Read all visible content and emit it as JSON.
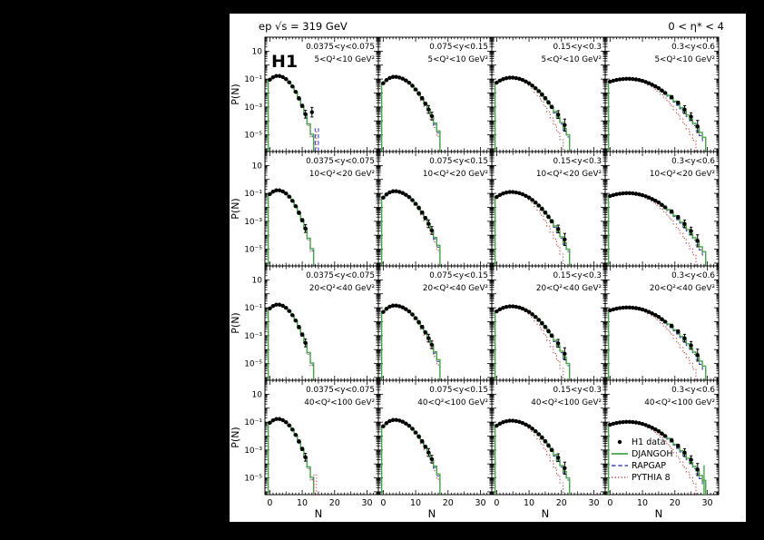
{
  "header": {
    "left": "ep √s = 319 GeV",
    "right": "0 < η* < 4"
  },
  "experiment_label": "H1",
  "colors": {
    "data": "#000000",
    "djangoh": "#4aa44a",
    "rapgap": "#4646be",
    "pythia": "#c05050",
    "background": "#ffffff",
    "page": "#000000"
  },
  "legend": [
    {
      "label": "H1 data",
      "style": "marker",
      "series": "data"
    },
    {
      "label": "DJANGOH",
      "style": "solid",
      "series": "djangoh"
    },
    {
      "label": "RAPGAP",
      "style": "dashed",
      "series": "rapgap"
    },
    {
      "label": "PYTHIA 8",
      "style": "dotted",
      "series": "pythia"
    }
  ],
  "chart_data": {
    "type": "line",
    "layout": "4x4 grid of log-scale multiplicity distributions P(N) vs N",
    "x_label": "N",
    "y_label": "P(N)",
    "x_range": [
      -1.5,
      33.5
    ],
    "y_log_range": [
      -6.2,
      2.0
    ],
    "x_ticks": [
      0,
      10,
      20,
      30
    ],
    "y_ticks": [
      {
        "label": "10",
        "log": 1
      },
      {
        "label": "10⁻¹",
        "log": -1
      },
      {
        "label": "10⁻³",
        "log": -3
      },
      {
        "label": "10⁻⁵",
        "log": -5
      }
    ],
    "y_bins": [
      "0.0375<y<0.075",
      "0.075<y<0.15",
      "0.15<y<0.3",
      "0.3<y<0.6"
    ],
    "q2_bins": [
      "5<Q²<10 GeV²",
      "10<Q²<20 GeV²",
      "20<Q²<40 GeV²",
      "40<Q²<100 GeV²"
    ],
    "series_names": [
      "H1 data",
      "DJANGOH",
      "RAPGAP",
      "PYTHIA 8"
    ],
    "legend_panel": "r3c3",
    "h1_label_panel": "r0c0",
    "columns": [
      {
        "data": [
          [
            0,
            0.089
          ],
          [
            1,
            0.134
          ],
          [
            2,
            0.166
          ],
          [
            3,
            0.165
          ],
          [
            4,
            0.139
          ],
          [
            5,
            0.098
          ],
          [
            6,
            0.058
          ],
          [
            7,
            0.029
          ],
          [
            8,
            0.012
          ],
          [
            9,
            0.0041
          ],
          [
            10,
            0.0012
          ],
          [
            11,
            0.0003
          ]
        ],
        "djangoh": [
          0.089,
          0.134,
          0.166,
          0.165,
          0.139,
          0.098,
          0.058,
          0.029,
          0.012,
          0.0041,
          0.0012,
          0.0003,
          6.1e-05,
          1.1e-05
        ],
        "rapgap": [
          0.086,
          0.13,
          0.162,
          0.162,
          0.136,
          0.095,
          0.055,
          0.027,
          0.011,
          0.0036,
          0.001,
          0.00025,
          5e-05,
          8e-06
        ],
        "pythia": [
          0.095,
          0.14,
          0.168,
          0.163,
          0.134,
          0.091,
          0.051,
          0.025,
          0.0095,
          0.0032,
          0.0009,
          0.00022,
          4.5e-05,
          7e-06
        ]
      },
      {
        "data": [
          [
            0,
            0.05
          ],
          [
            1,
            0.084
          ],
          [
            2,
            0.119
          ],
          [
            3,
            0.142
          ],
          [
            4,
            0.143
          ],
          [
            5,
            0.129
          ],
          [
            6,
            0.106
          ],
          [
            7,
            0.079
          ],
          [
            8,
            0.054
          ],
          [
            9,
            0.033
          ],
          [
            10,
            0.018
          ],
          [
            11,
            0.0092
          ],
          [
            12,
            0.0042
          ],
          [
            13,
            0.0017
          ],
          [
            14,
            0.00066
          ],
          [
            15,
            0.00022
          ]
        ],
        "djangoh": [
          0.05,
          0.084,
          0.119,
          0.142,
          0.143,
          0.129,
          0.106,
          0.079,
          0.054,
          0.033,
          0.018,
          0.0092,
          0.0042,
          0.0017,
          0.00066,
          0.00022,
          6.9e-05,
          1.9e-05
        ],
        "rapgap": [
          0.048,
          0.082,
          0.117,
          0.14,
          0.142,
          0.128,
          0.104,
          0.077,
          0.052,
          0.031,
          0.017,
          0.0085,
          0.0038,
          0.0015,
          0.00055,
          0.00017,
          5.5e-05,
          1.4e-05
        ],
        "pythia": [
          0.058,
          0.092,
          0.125,
          0.145,
          0.142,
          0.125,
          0.099,
          0.071,
          0.046,
          0.027,
          0.014,
          0.0066,
          0.0028,
          0.0011,
          0.00038,
          0.00012,
          3.3e-05,
          8e-06
        ]
      },
      {
        "data": [
          [
            0,
            0.055
          ],
          [
            1,
            0.077
          ],
          [
            2,
            0.098
          ],
          [
            3,
            0.115
          ],
          [
            4,
            0.125
          ],
          [
            5,
            0.125
          ],
          [
            6,
            0.117
          ],
          [
            7,
            0.104
          ],
          [
            8,
            0.086
          ],
          [
            9,
            0.067
          ],
          [
            10,
            0.05
          ],
          [
            11,
            0.034
          ],
          [
            12,
            0.022
          ],
          [
            13,
            0.0136
          ],
          [
            14,
            0.0078
          ],
          [
            15,
            0.0042
          ],
          [
            16,
            0.0021
          ],
          [
            17,
            0.001
          ],
          [
            19,
            0.00028
          ],
          [
            21,
            5e-05
          ]
        ],
        "djangoh": [
          0.055,
          0.077,
          0.098,
          0.115,
          0.125,
          0.125,
          0.117,
          0.104,
          0.086,
          0.067,
          0.05,
          0.034,
          0.022,
          0.0136,
          0.0078,
          0.0042,
          0.0021,
          0.001,
          0.00046,
          0.00019,
          7.7e-05,
          2.9e-05,
          1e-05
        ],
        "rapgap": [
          0.053,
          0.075,
          0.096,
          0.113,
          0.124,
          0.124,
          0.116,
          0.102,
          0.084,
          0.065,
          0.048,
          0.032,
          0.02,
          0.0125,
          0.007,
          0.0037,
          0.0018,
          0.00085,
          0.00037,
          0.00015,
          6e-05,
          2.2e-05,
          7e-06
        ],
        "pythia": [
          0.062,
          0.085,
          0.105,
          0.12,
          0.126,
          0.123,
          0.112,
          0.095,
          0.075,
          0.055,
          0.035,
          0.021,
          0.0114,
          0.0057,
          0.0027,
          0.0011,
          0.00044,
          0.00016,
          5.2e-05,
          1.6e-05,
          4.4e-06
        ]
      },
      {
        "data": [
          [
            0,
            0.065
          ],
          [
            1,
            0.076
          ],
          [
            2,
            0.086
          ],
          [
            3,
            0.095
          ],
          [
            4,
            0.101
          ],
          [
            5,
            0.105
          ],
          [
            6,
            0.105
          ],
          [
            7,
            0.101
          ],
          [
            8,
            0.094
          ],
          [
            9,
            0.085
          ],
          [
            10,
            0.074
          ],
          [
            11,
            0.062
          ],
          [
            12,
            0.05
          ],
          [
            13,
            0.039
          ],
          [
            14,
            0.03
          ],
          [
            15,
            0.022
          ],
          [
            16,
            0.015
          ],
          [
            17,
            0.01
          ],
          [
            19,
            0.005
          ],
          [
            21,
            0.002
          ],
          [
            23,
            0.00065
          ],
          [
            25,
            0.0002
          ],
          [
            27,
            4e-05
          ]
        ],
        "djangoh": [
          0.065,
          0.076,
          0.086,
          0.095,
          0.101,
          0.105,
          0.105,
          0.101,
          0.094,
          0.085,
          0.074,
          0.062,
          0.05,
          0.039,
          0.03,
          0.022,
          0.015,
          0.01,
          0.0068,
          0.0043,
          0.0026,
          0.0016,
          0.00089,
          0.00049,
          0.00026,
          0.00013,
          6.6e-05,
          3.2e-05,
          1.5e-05,
          6.6e-06
        ],
        "rapgap": [
          0.063,
          0.074,
          0.084,
          0.093,
          0.1,
          0.104,
          0.104,
          0.1,
          0.093,
          0.083,
          0.072,
          0.06,
          0.048,
          0.037,
          0.028,
          0.02,
          0.0138,
          0.0092,
          0.006,
          0.0038,
          0.0022,
          0.0013,
          0.00072,
          0.00038,
          0.0002,
          9.5e-05,
          4.5e-05,
          2e-05,
          8.8e-06,
          3.8e-06
        ],
        "pythia": [
          0.075,
          0.085,
          0.094,
          0.101,
          0.106,
          0.108,
          0.106,
          0.1,
          0.09,
          0.078,
          0.064,
          0.05,
          0.038,
          0.027,
          0.018,
          0.012,
          0.0073,
          0.0043,
          0.0024,
          0.0013,
          0.00064,
          0.0003,
          0.00014,
          6e-05,
          2.6e-05,
          1.05e-05,
          4e-06
        ]
      }
    ],
    "panel_extras": {
      "r0c0": {
        "points": [
          [
            13,
            0.00042
          ]
        ],
        "spikes": [
          {
            "series": "rapgap",
            "n": 14,
            "p": 3e-05
          },
          {
            "series": "rapgap",
            "n": 15,
            "p": 3e-05
          },
          {
            "series": "pythia",
            "n": 14.4,
            "p": 2e-05
          }
        ]
      },
      "r3c0": {
        "spikes": [
          {
            "series": "pythia",
            "n": 13.6,
            "p": 2.5e-05
          },
          {
            "series": "pythia",
            "n": 14.4,
            "p": 2.5e-05
          }
        ]
      },
      "r3c3": {
        "spikes": [
          {
            "series": "djangoh",
            "n": 29,
            "p": 8e-05
          }
        ]
      }
    }
  }
}
